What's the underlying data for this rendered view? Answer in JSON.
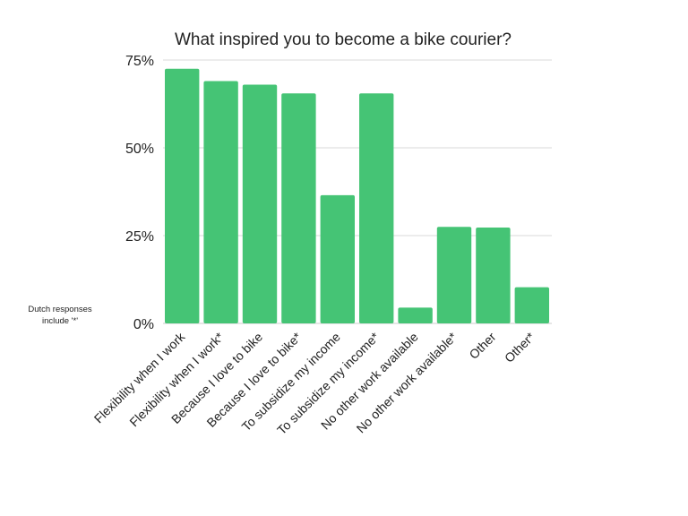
{
  "chart_data": {
    "type": "bar",
    "title": "What inspired you to become a bike courier?",
    "xlabel": "",
    "ylabel": "",
    "ylim": [
      0,
      75
    ],
    "yticks": [
      0,
      25,
      50,
      75
    ],
    "ytick_labels": [
      "0%",
      "25%",
      "50%",
      "75%"
    ],
    "grid": true,
    "categories": [
      "Flexibility when I work",
      "Flexibility when I work*",
      "Because I love to bike",
      "Because I love to bike*",
      "To subsidize my income",
      "To subsidize my income*",
      "No other work available",
      "No other work available*",
      "Other",
      "Other*"
    ],
    "values": [
      72.5,
      69,
      68,
      65.5,
      36.5,
      65.5,
      4.5,
      27.5,
      27.3,
      10.3
    ],
    "bar_color": "#45c475",
    "note": [
      "Dutch responses",
      "include '*'"
    ]
  }
}
